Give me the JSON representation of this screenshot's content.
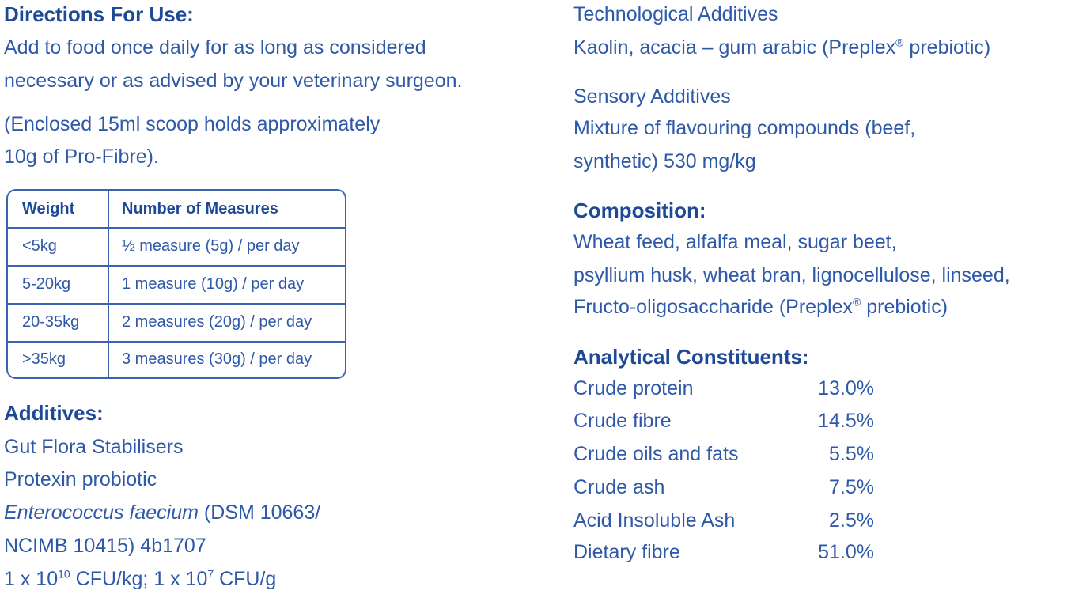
{
  "directions": {
    "heading": "Directions For Use:",
    "lines": [
      "Add to food once daily for as long as considered",
      "necessary or as advised by your veterinary surgeon."
    ],
    "note_lines": [
      "(Enclosed 15ml scoop holds approximately",
      "10g of Pro-Fibre)."
    ]
  },
  "table": {
    "headers": [
      "Weight",
      "Number of Measures"
    ],
    "rows": [
      [
        "<5kg",
        "½ measure (5g) / per day"
      ],
      [
        "5-20kg",
        "1 measure (10g) / per day"
      ],
      [
        "20-35kg",
        "2 measures (20g) / per day"
      ],
      [
        ">35kg",
        "3 measures (30g) / per day"
      ]
    ]
  },
  "additives": {
    "heading": "Additives:",
    "lines": [
      "Gut Flora Stabilisers",
      "Protexin probiotic"
    ],
    "species": "Enterococcus faecium",
    "strain": " (DSM 10663/",
    "strain_cont": "NCIMB 10415) 4b1707",
    "cfu_parts": [
      "1 x 10",
      "10",
      " CFU/kg; 1 x 10",
      "7",
      " CFU/g"
    ]
  },
  "technological": {
    "heading": "Technological Additives",
    "parts": [
      "Kaolin, acacia – gum arabic (Preplex",
      "®",
      " prebiotic)"
    ]
  },
  "sensory": {
    "heading": "Sensory Additives",
    "lines": [
      "Mixture of flavouring compounds (beef,",
      "synthetic) 530 mg/kg"
    ]
  },
  "composition": {
    "heading": "Composition:",
    "lines": [
      "Wheat feed, alfalfa meal, sugar beet,",
      "psyllium husk, wheat bran, lignocellulose, linseed,"
    ],
    "last_parts": [
      "Fructo-oligosaccharide (Preplex",
      "®",
      " prebiotic)"
    ]
  },
  "analytical": {
    "heading": "Analytical Constituents:",
    "rows": [
      [
        "Crude protein",
        "13.0%"
      ],
      [
        "Crude fibre",
        "14.5%"
      ],
      [
        "Crude oils and fats",
        "5.5%"
      ],
      [
        "Crude ash",
        "7.5%"
      ],
      [
        "Acid Insoluble Ash",
        "2.5%"
      ],
      [
        "Dietary fibre",
        "51.0%"
      ]
    ]
  }
}
